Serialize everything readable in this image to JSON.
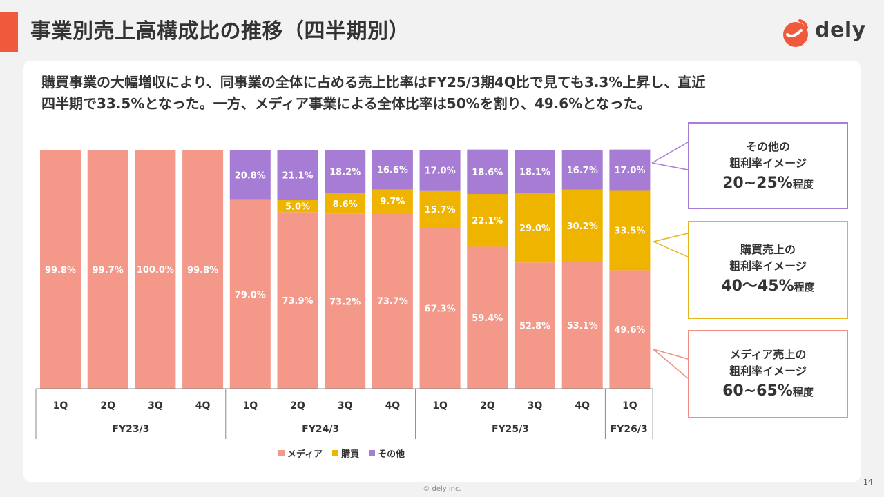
{
  "page": {
    "title": "事業別売上高構成比の推移（四半期別）",
    "brand": "dely",
    "summary_line1": "購買事業の大幅増収により、同事業の全体に占める売上比率はFY25/3期4Q比で見ても3.3%上昇し、直近",
    "summary_line2": "四半期で33.5%となった。一方、メディア事業による全体比率は50%を割り、49.6%となった。",
    "page_number": "14",
    "copyright": "© dely inc."
  },
  "colors": {
    "accent": "#f05a3c",
    "media": "#f4998a",
    "kobai": "#efb400",
    "other": "#a77cd4"
  },
  "callouts": [
    {
      "line1": "その他の",
      "line2": "粗利率イメージ",
      "value": "20~25%",
      "suffix": "程度",
      "color": "#a77cd4"
    },
    {
      "line1": "購買売上の",
      "line2": "粗利率イメージ",
      "value": "40〜45%",
      "suffix": "程度",
      "color": "#e6b41c"
    },
    {
      "line1": "メディア売上の",
      "line2": "粗利率イメージ",
      "value": "60~65%",
      "suffix": "程度",
      "color": "#ee8f80"
    }
  ],
  "chart_data": {
    "type": "bar",
    "stacked": true,
    "percent": true,
    "categories": [
      "1Q",
      "2Q",
      "3Q",
      "4Q",
      "1Q",
      "2Q",
      "3Q",
      "4Q",
      "1Q",
      "2Q",
      "3Q",
      "4Q",
      "1Q"
    ],
    "groups": [
      {
        "label": "FY23/3",
        "count": 4
      },
      {
        "label": "FY24/3",
        "count": 4
      },
      {
        "label": "FY25/3",
        "count": 4
      },
      {
        "label": "FY26/3",
        "count": 1
      }
    ],
    "series": [
      {
        "name": "メディア",
        "color": "#f4998a",
        "values": [
          99.8,
          99.7,
          100.0,
          99.8,
          79.0,
          73.9,
          73.2,
          73.7,
          67.3,
          59.4,
          52.8,
          53.1,
          49.6
        ],
        "labels": [
          "99.8%",
          "99.7%",
          "100.0%",
          "99.8%",
          "79.0%",
          "73.9%",
          "73.2%",
          "73.7%",
          "67.3%",
          "59.4%",
          "52.8%",
          "53.1%",
          "49.6%"
        ]
      },
      {
        "name": "購買",
        "color": "#efb400",
        "values": [
          0,
          0,
          0,
          0,
          0,
          5.0,
          8.6,
          9.7,
          15.7,
          22.1,
          29.0,
          30.2,
          33.5
        ],
        "labels": [
          "",
          "",
          "",
          "",
          "",
          "5.0%",
          "8.6%",
          "9.7%",
          "15.7%",
          "22.1%",
          "29.0%",
          "30.2%",
          "33.5%"
        ]
      },
      {
        "name": "その他",
        "color": "#a77cd4",
        "values": [
          0.2,
          0.3,
          0,
          0.2,
          20.8,
          21.1,
          18.2,
          16.6,
          17.0,
          18.6,
          18.1,
          16.7,
          17.0
        ],
        "labels": [
          "",
          "",
          "",
          "",
          "20.8%",
          "21.1%",
          "18.2%",
          "16.6%",
          "17.0%",
          "18.6%",
          "18.1%",
          "16.7%",
          "17.0%"
        ]
      }
    ],
    "ylim": [
      0,
      100
    ]
  }
}
